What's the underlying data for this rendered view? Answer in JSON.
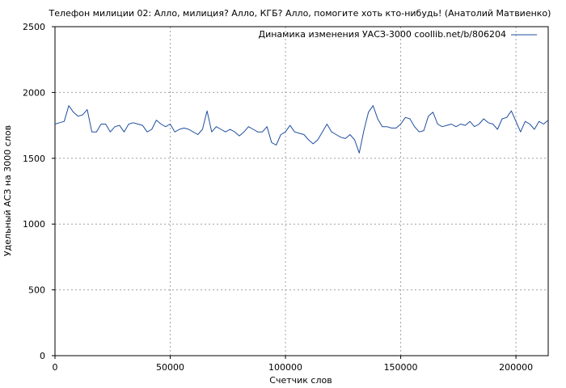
{
  "chart_data": {
    "type": "line",
    "title": "Телефон милиции 02: Алло, милиция? Алло, КГБ? Алло, помогите хоть кто-нибудь! (Анатолий Матвиенко)",
    "xlabel": "Счетчик слов",
    "ylabel": "Удельный АСЗ на 3000 слов",
    "xlim": [
      0,
      214000
    ],
    "ylim": [
      0,
      2500
    ],
    "x_ticks": [
      0,
      50000,
      100000,
      150000,
      200000
    ],
    "x_tick_labels": [
      "0",
      "50000",
      "100000",
      "150000",
      "200000"
    ],
    "y_ticks": [
      0,
      500,
      1000,
      1500,
      2000,
      2500
    ],
    "y_tick_labels": [
      "0",
      "500",
      "1000",
      "1500",
      "2000",
      "2500"
    ],
    "grid": true,
    "legend_position": "top-right",
    "series": [
      {
        "name": "Динамика изменения УАСЗ-3000 coollib.net/b/806204",
        "color": "#1f4e9e",
        "x": [
          0,
          2000,
          4000,
          6000,
          8000,
          10000,
          12000,
          14000,
          16000,
          18000,
          20000,
          22000,
          24000,
          26000,
          28000,
          30000,
          32000,
          34000,
          36000,
          38000,
          40000,
          42000,
          44000,
          46000,
          48000,
          50000,
          52000,
          54000,
          56000,
          58000,
          60000,
          62000,
          64000,
          66000,
          68000,
          70000,
          72000,
          74000,
          76000,
          78000,
          80000,
          82000,
          84000,
          86000,
          88000,
          90000,
          92000,
          94000,
          96000,
          98000,
          100000,
          102000,
          104000,
          106000,
          108000,
          110000,
          112000,
          114000,
          116000,
          118000,
          120000,
          122000,
          124000,
          126000,
          128000,
          130000,
          132000,
          134000,
          136000,
          138000,
          140000,
          142000,
          144000,
          146000,
          148000,
          150000,
          152000,
          154000,
          156000,
          158000,
          160000,
          162000,
          164000,
          166000,
          168000,
          170000,
          172000,
          174000,
          176000,
          178000,
          180000,
          182000,
          184000,
          186000,
          188000,
          190000,
          192000,
          194000,
          196000,
          198000,
          200000,
          202000,
          204000,
          206000,
          208000,
          210000,
          212000,
          214000
        ],
        "values": [
          1760,
          1770,
          1780,
          1900,
          1850,
          1820,
          1830,
          1870,
          1700,
          1700,
          1760,
          1760,
          1700,
          1740,
          1750,
          1700,
          1760,
          1770,
          1760,
          1750,
          1700,
          1720,
          1790,
          1760,
          1740,
          1760,
          1700,
          1720,
          1730,
          1720,
          1700,
          1680,
          1720,
          1860,
          1700,
          1740,
          1720,
          1700,
          1720,
          1700,
          1670,
          1700,
          1740,
          1720,
          1700,
          1700,
          1740,
          1620,
          1600,
          1680,
          1700,
          1750,
          1700,
          1690,
          1680,
          1640,
          1610,
          1640,
          1700,
          1760,
          1700,
          1680,
          1660,
          1650,
          1680,
          1640,
          1540,
          1710,
          1850,
          1900,
          1800,
          1740,
          1740,
          1730,
          1730,
          1760,
          1810,
          1800,
          1740,
          1700,
          1710,
          1820,
          1850,
          1760,
          1740,
          1750,
          1760,
          1740,
          1760,
          1750,
          1780,
          1740,
          1760,
          1800,
          1770,
          1760,
          1720,
          1800,
          1810,
          1860,
          1780,
          1700,
          1780,
          1760,
          1720,
          1780,
          1760,
          1790
        ]
      }
    ]
  }
}
